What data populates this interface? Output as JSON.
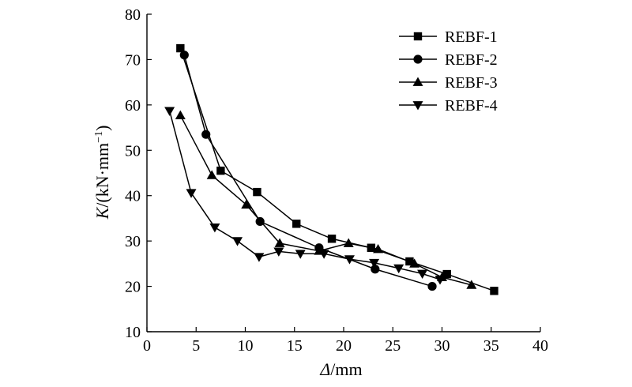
{
  "chart_data": {
    "type": "line",
    "xlabel": {
      "symbol": "Δ",
      "unit": "/mm"
    },
    "ylabel": {
      "symbol": "K",
      "unit_prefix": "/(kN·mm",
      "exponent": "−1",
      "unit_suffix": ")"
    },
    "xlim": [
      0,
      40
    ],
    "ylim": [
      10,
      80
    ],
    "xticks": [
      0,
      5,
      10,
      15,
      20,
      25,
      30,
      35,
      40
    ],
    "yticks": [
      10,
      20,
      30,
      40,
      50,
      60,
      70,
      80
    ],
    "grid": false,
    "legend_position": "top-right",
    "series": [
      {
        "name": "REBF-1",
        "marker": "square",
        "x": [
          3.4,
          7.5,
          11.2,
          15.2,
          18.8,
          22.8,
          26.7,
          30.5,
          35.3
        ],
        "y": [
          72.5,
          45.5,
          40.8,
          33.8,
          30.5,
          28.5,
          25.5,
          22.7,
          19.0
        ]
      },
      {
        "name": "REBF-2",
        "marker": "circle",
        "x": [
          3.8,
          6.0,
          11.5,
          17.5,
          23.2,
          29.0
        ],
        "y": [
          71.0,
          53.5,
          34.3,
          28.5,
          23.8,
          20.0
        ]
      },
      {
        "name": "REBF-3",
        "marker": "triangle-up",
        "x": [
          3.4,
          6.6,
          10.1,
          13.5,
          17.5,
          20.5,
          23.5,
          27.2,
          30.0,
          33.0
        ],
        "y": [
          57.7,
          44.5,
          38.0,
          29.5,
          27.8,
          29.5,
          28.2,
          25.0,
          22.0,
          20.3
        ]
      },
      {
        "name": "REBF-4",
        "marker": "triangle-down",
        "x": [
          2.3,
          4.5,
          6.9,
          9.2,
          11.4,
          13.4,
          15.6,
          18.0,
          20.6,
          23.1,
          25.6,
          28.0,
          29.8
        ],
        "y": [
          58.7,
          40.6,
          33.0,
          30.0,
          26.5,
          27.7,
          27.2,
          27.2,
          26.0,
          25.2,
          24.0,
          22.8,
          21.5
        ]
      }
    ]
  }
}
